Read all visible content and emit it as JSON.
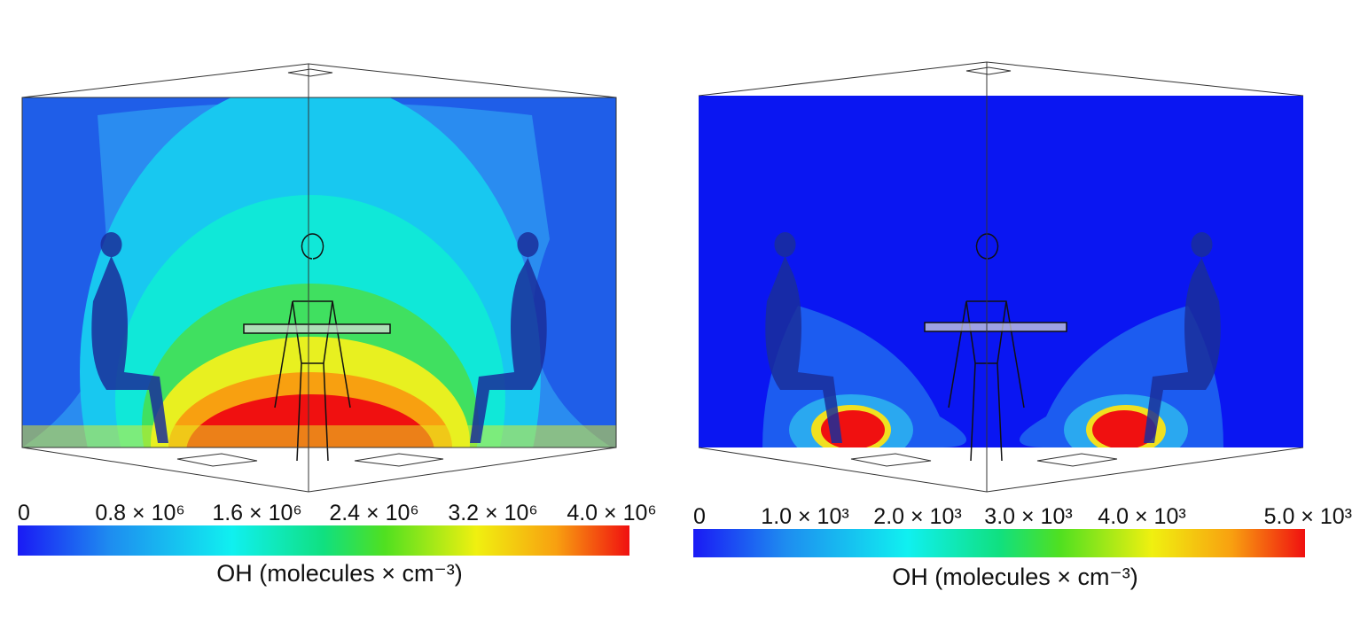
{
  "panels": [
    {
      "colorbar": {
        "ticks": [
          "0",
          "0.8 × 10⁶",
          "1.6 × 10⁶",
          "2.4 × 10⁶",
          "3.2 × 10⁶",
          "4.0 × 10⁶"
        ],
        "label": "OH (molecules × cm⁻³)"
      }
    },
    {
      "colorbar": {
        "ticks": [
          "0",
          "1.0 × 10³",
          "2.0 × 10³",
          "3.0 × 10³",
          "4.0 × 10³",
          "5.0 × 10³"
        ],
        "label": "OH (molecules × cm⁻³)"
      }
    }
  ]
}
